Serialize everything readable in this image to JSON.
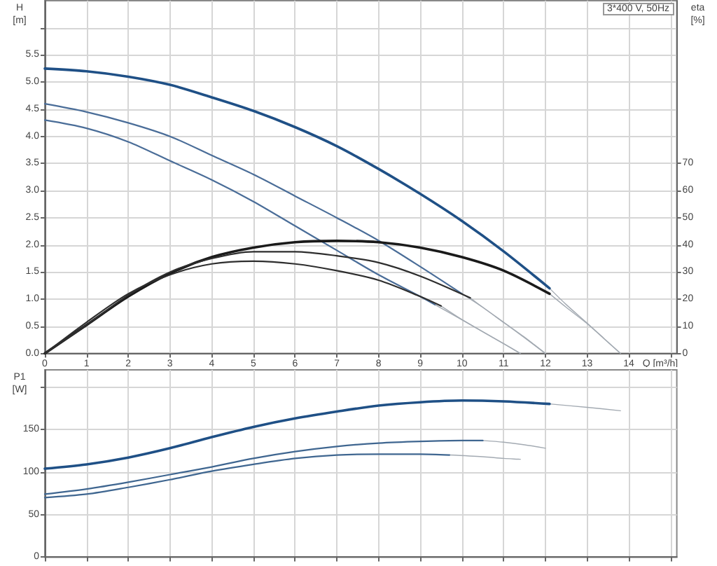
{
  "chart_data": [
    {
      "type": "line",
      "title": "3*400 V, 50Hz",
      "xlabel": "Q [m³/h]",
      "ylabel": "H [m]",
      "y2label": "eta [%]",
      "xlim": [
        0,
        15.15
      ],
      "xticks": [
        0,
        1,
        2,
        3,
        4,
        5,
        6,
        7,
        8,
        9,
        10,
        11,
        12,
        13,
        14,
        {
          "value": 15,
          "label": null
        }
      ],
      "ylim": [
        0,
        6.5
      ],
      "yticks": [
        {
          "value": 0,
          "label": "0.0"
        },
        0.5,
        {
          "value": 1,
          "label": "1.0"
        },
        1.5,
        {
          "value": 2,
          "label": "2.0"
        },
        2.5,
        {
          "value": 3,
          "label": "3.0"
        },
        3.5,
        {
          "value": 4,
          "label": "4.0"
        },
        4.5,
        {
          "value": 5,
          "label": "5.0"
        },
        5.5,
        {
          "value": 6,
          "label": null
        }
      ],
      "y2lim": [
        0,
        130
      ],
      "y2ticks": [
        0,
        10,
        20,
        30,
        40,
        50,
        60,
        70
      ],
      "grid": true,
      "marker": "none",
      "series": [
        {
          "color": "#1f5086",
          "x": [
            0,
            1,
            2,
            3,
            4,
            5,
            6,
            7,
            8,
            9,
            10,
            11,
            12.1
          ],
          "values": [
            5.25,
            5.2,
            5.1,
            4.95,
            4.72,
            4.47,
            4.17,
            3.82,
            3.4,
            2.94,
            2.44,
            1.88,
            1.2
          ]
        },
        {
          "color": "#4a6d98",
          "x": [
            0,
            1,
            2,
            3,
            4,
            5,
            6,
            7,
            8,
            9,
            10
          ],
          "values": [
            4.6,
            4.45,
            4.25,
            4.0,
            3.65,
            3.3,
            2.9,
            2.5,
            2.08,
            1.6,
            1.1
          ]
        },
        {
          "color": "#4a6d98",
          "x": [
            0,
            1,
            2,
            3,
            4,
            5,
            6,
            7,
            8,
            9,
            9.35
          ],
          "values": [
            4.3,
            4.15,
            3.9,
            3.55,
            3.2,
            2.8,
            2.35,
            1.9,
            1.45,
            1.05,
            0.9
          ]
        },
        {
          "color": "#1a1a1a",
          "axis": "y2",
          "x": [
            0,
            1,
            2,
            3,
            4,
            5,
            6,
            7,
            8,
            9,
            10,
            11,
            12.1
          ],
          "values": [
            0,
            10.5,
            21,
            29.5,
            35.5,
            39,
            41,
            41.5,
            41,
            39,
            35.5,
            30.5,
            22
          ]
        },
        {
          "color": "#2e2e2e",
          "axis": "y2",
          "x": [
            0,
            1,
            2,
            3,
            4,
            5,
            6,
            7,
            8,
            9,
            10.2
          ],
          "values": [
            0,
            10.5,
            21.5,
            30,
            35,
            37.5,
            37.5,
            36,
            33.5,
            28.5,
            20.5
          ]
        },
        {
          "color": "#2e2e2e",
          "axis": "y2",
          "x": [
            0,
            1,
            2,
            3,
            4,
            5,
            6,
            7,
            8,
            9,
            9.5
          ],
          "values": [
            0,
            11.5,
            22,
            29,
            33,
            34,
            33,
            30.5,
            27,
            21,
            17.5
          ]
        },
        {
          "color": "#a3aab2",
          "x": [
            12.1,
            12.5,
            13,
            13.4,
            13.8
          ],
          "values": [
            1.2,
            0.9,
            0.56,
            0.28,
            0
          ]
        },
        {
          "color": "#a3aab2",
          "x": [
            10,
            10.5,
            11,
            11.5,
            12
          ],
          "values": [
            1.1,
            0.85,
            0.57,
            0.29,
            0
          ]
        },
        {
          "color": "#a3aab2",
          "x": [
            9.35,
            10,
            10.5,
            11,
            11.4
          ],
          "values": [
            0.9,
            0.62,
            0.4,
            0.18,
            0
          ]
        },
        {
          "color": "#a3aab2",
          "axis": "y2",
          "x": [
            12.1,
            12.5,
            13,
            13.4,
            13.8
          ],
          "values": [
            22,
            17,
            11,
            5.5,
            0
          ]
        },
        {
          "color": "#a3aab2",
          "axis": "y2",
          "x": [
            10.2,
            10.5,
            11,
            11.5,
            12
          ],
          "values": [
            20.5,
            17,
            11.5,
            6,
            0
          ]
        },
        {
          "color": "#a3aab2",
          "axis": "y2",
          "x": [
            9.5,
            10,
            10.5,
            11,
            11.4
          ],
          "values": [
            17.5,
            12.5,
            8,
            3.6,
            0
          ]
        }
      ]
    },
    {
      "type": "line",
      "ylabel": "P1 [W]",
      "tick_labels": "y",
      "xlim": [
        0,
        15.15
      ],
      "xticks": [
        0,
        1,
        2,
        3,
        4,
        5,
        6,
        7,
        8,
        9,
        10,
        11,
        12,
        13,
        14,
        {
          "value": 15,
          "label": null
        }
      ],
      "ylim": [
        0,
        220
      ],
      "yticks": [
        0,
        50,
        100,
        150,
        {
          "value": 200,
          "label": null
        }
      ],
      "grid": true,
      "marker": "none",
      "series": [
        {
          "color": "#1f5086",
          "x": [
            0,
            1,
            2,
            3,
            4,
            5,
            6,
            7,
            8,
            9,
            10,
            11,
            12.1
          ],
          "values": [
            104,
            109,
            117,
            128,
            141,
            153,
            163,
            171,
            178,
            182,
            184,
            183,
            180
          ]
        },
        {
          "color": "#3f6690",
          "x": [
            0,
            1,
            2,
            3,
            4,
            5,
            6,
            7,
            8,
            9,
            10,
            10.5
          ],
          "values": [
            74,
            80,
            88,
            97,
            106,
            116,
            124,
            130,
            134,
            136,
            137,
            137
          ]
        },
        {
          "color": "#3f6690",
          "x": [
            0,
            1,
            2,
            3,
            4,
            5,
            6,
            7,
            8,
            9,
            9.7
          ],
          "values": [
            70,
            74,
            82,
            91,
            101,
            109,
            116,
            120,
            121,
            121,
            120
          ]
        },
        {
          "color": "#a3aab2",
          "x": [
            12.1,
            13,
            13.8
          ],
          "values": [
            180,
            176,
            172
          ]
        },
        {
          "color": "#a3aab2",
          "x": [
            10.5,
            11,
            11.5,
            12
          ],
          "values": [
            137,
            135,
            132,
            128
          ]
        },
        {
          "color": "#a3aab2",
          "x": [
            9.7,
            10.5,
            11,
            11.4
          ],
          "values": [
            120,
            118,
            116,
            115
          ]
        }
      ]
    }
  ]
}
